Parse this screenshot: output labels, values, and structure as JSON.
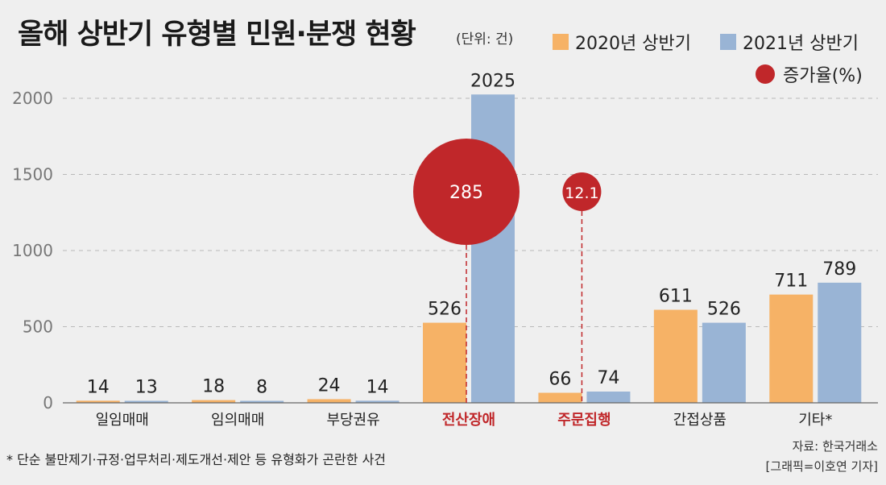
{
  "title": "올해 상반기 유형별 민원·분쟁 현황",
  "unit": "(단위: 건)",
  "legend": {
    "series1": "2020년 상반기",
    "series2": "2021년 상반기",
    "rate": "증가율(%)"
  },
  "colors": {
    "series1": "#f6b266",
    "series2": "#99b4d5",
    "rate": "#c0272a",
    "highlight_label": "#c0272a"
  },
  "footnote": "* 단순 불만제기·규정·업무처리·제도개선·제안 등 유형화가 곤란한 사건",
  "source": "자료: 한국거래소",
  "credit": "[그래픽=이호연 기자]",
  "chart_data": {
    "type": "bar",
    "title": "올해 상반기 유형별 민원·분쟁 현황",
    "unit": "건",
    "categories": [
      "일임매매",
      "임의매매",
      "부당권유",
      "전산장애",
      "주문집행",
      "간접상품",
      "기타*"
    ],
    "highlighted": [
      "전산장애",
      "주문집행"
    ],
    "series": [
      {
        "name": "2020년 상반기",
        "values": [
          14,
          18,
          24,
          526,
          66,
          611,
          711
        ]
      },
      {
        "name": "2021년 상반기",
        "values": [
          13,
          8,
          14,
          2025,
          74,
          526,
          789
        ]
      }
    ],
    "growth_rate": [
      {
        "category": "전산장애",
        "label": "285",
        "value": 285
      },
      {
        "category": "주문집행",
        "label": "12.1",
        "value": 12.1
      }
    ],
    "yticks": [
      "0",
      "500",
      "1000",
      "1500",
      "2000"
    ],
    "ylim": [
      0,
      2000
    ],
    "grid": true
  }
}
